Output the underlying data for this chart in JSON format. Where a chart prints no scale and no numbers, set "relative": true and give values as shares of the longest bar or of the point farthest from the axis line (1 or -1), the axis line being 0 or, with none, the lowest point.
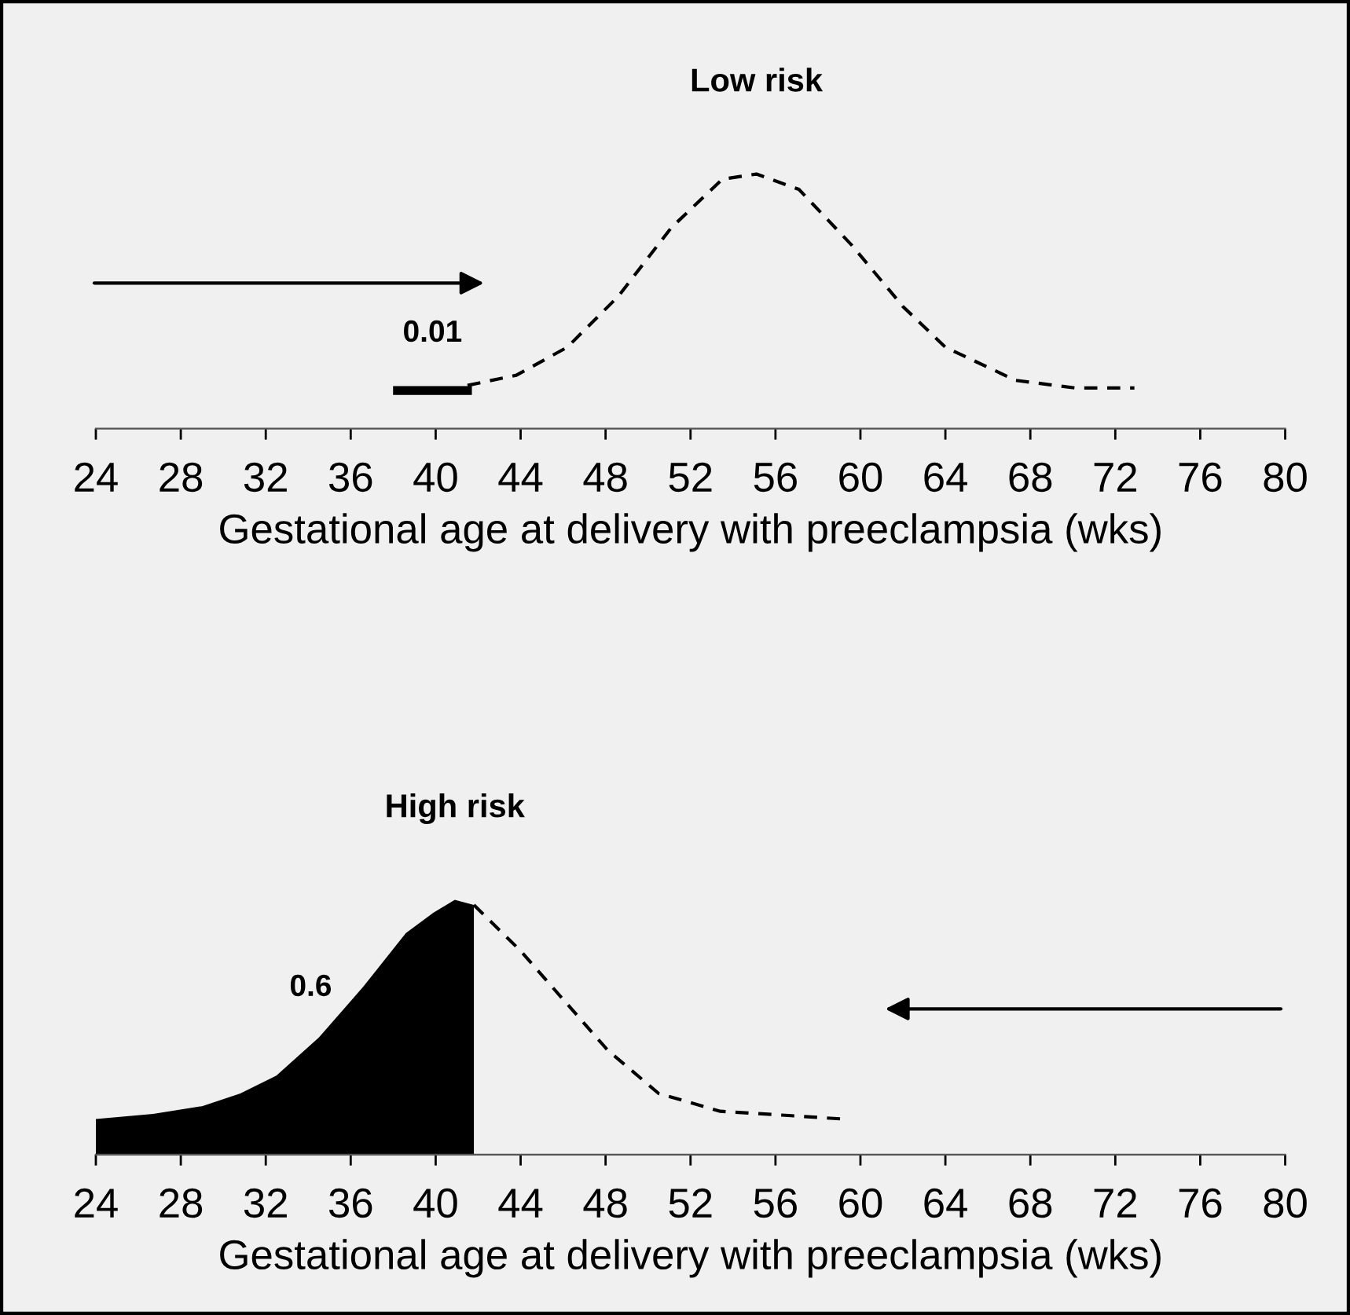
{
  "chart_data": [
    {
      "type": "line",
      "title": "Low risk",
      "xlabel": "Gestational age at delivery with preeclampsia (wks)",
      "relative": true,
      "xlim": [
        24,
        80
      ],
      "xticks": [
        24,
        28,
        32,
        36,
        40,
        44,
        48,
        52,
        56,
        60,
        64,
        68,
        72,
        76,
        80
      ],
      "tick_labels": "x",
      "grid": false,
      "legend": false,
      "series": [
        {
          "color": "#000000",
          "line_style": "solid",
          "x": [
            38.2,
            41.5
          ],
          "values": [
            0.15,
            0.15
          ]
        },
        {
          "color": "#000000",
          "line_style": "dashed",
          "x": [
            41.5,
            43.8,
            46.2,
            48.6,
            51.1,
            53.5,
            55.1,
            57.1,
            59.6,
            62.0,
            64.0,
            67.3,
            70.1,
            72.9
          ],
          "values": [
            0.17,
            0.21,
            0.32,
            0.52,
            0.79,
            0.98,
            1.0,
            0.94,
            0.72,
            0.48,
            0.32,
            0.19,
            0.16,
            0.16
          ]
        }
      ],
      "annotations": [
        "0.01"
      ]
    },
    {
      "type": "area",
      "title": "High risk",
      "xlabel": "Gestational age at delivery with preeclampsia (wks)",
      "relative": true,
      "xlim": [
        24,
        80
      ],
      "xticks": [
        24,
        28,
        32,
        36,
        40,
        44,
        48,
        52,
        56,
        60,
        64,
        68,
        72,
        76,
        80
      ],
      "tick_labels": "x",
      "grid": false,
      "legend": false,
      "series": [
        {
          "color": "#000000",
          "x": [
            24,
            26.7,
            29.0,
            30.8,
            32.5,
            34.5,
            36.6,
            38.6,
            39.9,
            40.9,
            41.8
          ],
          "values": [
            0.14,
            0.16,
            0.19,
            0.24,
            0.31,
            0.46,
            0.66,
            0.87,
            0.95,
            1.0,
            0.98
          ]
        },
        {
          "type": "line",
          "color": "#000000",
          "line_style": "dashed",
          "x": [
            41.8,
            44.0,
            46.1,
            48.1,
            50.5,
            53.4,
            56.3,
            59.1
          ],
          "values": [
            0.98,
            0.8,
            0.6,
            0.41,
            0.24,
            0.17,
            0.155,
            0.14
          ]
        }
      ],
      "annotations": [
        "0.6"
      ]
    }
  ]
}
